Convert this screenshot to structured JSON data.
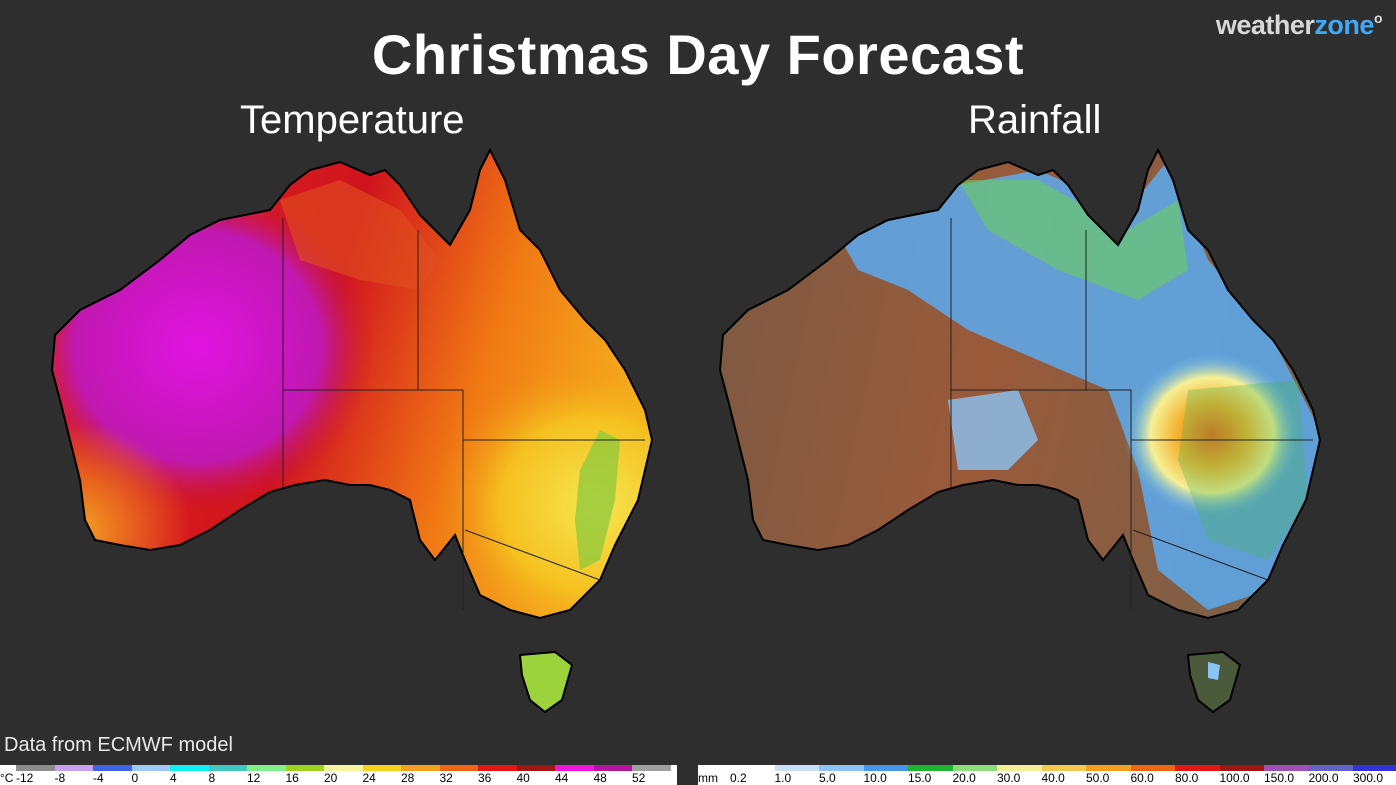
{
  "title": "Christmas Day Forecast",
  "logo": {
    "part1": "weather",
    "part2": "zone",
    "mark": "o"
  },
  "panels": {
    "temperature": {
      "title": "Temperature"
    },
    "rainfall": {
      "title": "Rainfall"
    }
  },
  "credit": "Data from ECMWF model",
  "temperature_legend": {
    "unit": "°C",
    "ticks": [
      "-12",
      "-8",
      "-4",
      "0",
      "4",
      "8",
      "12",
      "16",
      "20",
      "24",
      "28",
      "32",
      "36",
      "40",
      "44",
      "48",
      "52"
    ],
    "colors": [
      "#8c8c8c",
      "#c7a0f0",
      "#3f64e8",
      "#9ec8f5",
      "#10f0f0",
      "#40c8c0",
      "#7ff08a",
      "#9ed21e",
      "#f5f5a0",
      "#f5d21e",
      "#f5a01e",
      "#f06414",
      "#e61414",
      "#a01414",
      "#f514dc",
      "#b414a0",
      "#a0a0a0"
    ]
  },
  "rainfall_legend": {
    "unit": "mm",
    "ticks": [
      "0.2",
      "1.0",
      "5.0",
      "10.0",
      "15.0",
      "20.0",
      "30.0",
      "40.0",
      "50.0",
      "60.0",
      "80.0",
      "100.0",
      "150.0",
      "200.0",
      "300.0"
    ],
    "colors": [
      "#ffffff",
      "#c8e0fa",
      "#8cc3f5",
      "#4696eb",
      "#1eb432",
      "#8cdc78",
      "#f5f096",
      "#f5c850",
      "#f5a01e",
      "#f06414",
      "#e61414",
      "#a01414",
      "#a050b4",
      "#6464c8",
      "#3232dc"
    ]
  }
}
